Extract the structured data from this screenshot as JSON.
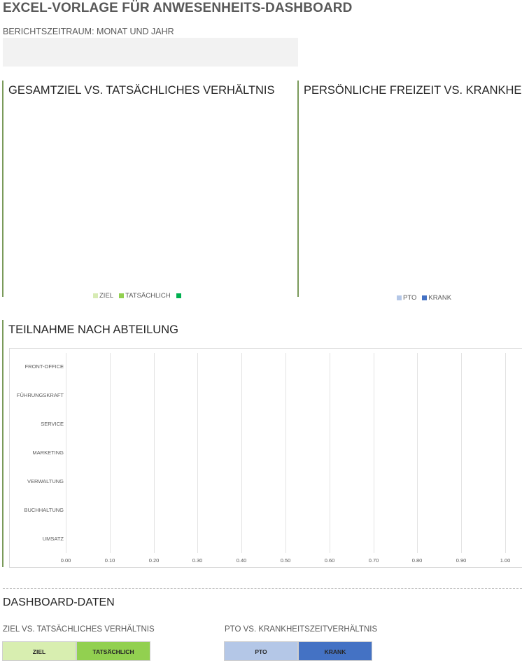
{
  "header": {
    "title": "EXCEL-VORLAGE FÜR ANWESENHEITS-DASHBOARD",
    "period_label": "BERICHTSZEITRAUM: MONAT UND JAHR",
    "period_value": ""
  },
  "panels": {
    "goal_vs_actual": {
      "title": "GESAMTZIEL VS. TATSÄCHLICHES VERHÄLTNIS",
      "legend": [
        {
          "label": "ZIEL",
          "color": "#d7ebb4"
        },
        {
          "label": "TATSÄCHLICH",
          "color": "#92d050"
        },
        {
          "label": "",
          "color": "#00b050"
        }
      ]
    },
    "pto_vs_sick": {
      "title": "PERSÖNLICHE FREIZEIT VS. KRANKHEITSZ",
      "legend": [
        {
          "label": "PTO",
          "color": "#b4c7e7"
        },
        {
          "label": "KRANK",
          "color": "#4472c4"
        }
      ]
    }
  },
  "chart_data": {
    "type": "bar",
    "orientation": "horizontal",
    "title": "TEILNAHME NACH ABTEILUNG",
    "categories": [
      "FRONT-OFFICE",
      "FÜHRUNGSKRAFT",
      "SERVICE",
      "MARKETING",
      "VERWALTUNG",
      "BUCHHALTUNG",
      "UMSATZ"
    ],
    "values": [
      0,
      0,
      0,
      0,
      0,
      0,
      0
    ],
    "xlim": [
      0,
      1
    ],
    "x_ticks": [
      "0.00",
      "0.10",
      "0.20",
      "0.30",
      "0.40",
      "0.50",
      "0.60",
      "0.70",
      "0.80",
      "0.90",
      "1.00"
    ],
    "grid": true,
    "bar_color": "#92d050"
  },
  "dashboard_data": {
    "title": "DASHBOARD-DATEN",
    "goal_table": {
      "label": "ZIEL VS. TATSÄCHLICHES VERHÄLTNIS",
      "columns": [
        {
          "label": "ZIEL",
          "color": "#d8eeb0"
        },
        {
          "label": "TATSÄCHLICH",
          "color": "#92d050"
        }
      ]
    },
    "pto_table": {
      "label": "PTO VS. KRANKHEITSZEITVERHÄLTNIS",
      "columns": [
        {
          "label": "PTO",
          "color": "#b4c7e7"
        },
        {
          "label": "KRANK",
          "color": "#4472c4"
        }
      ]
    }
  }
}
